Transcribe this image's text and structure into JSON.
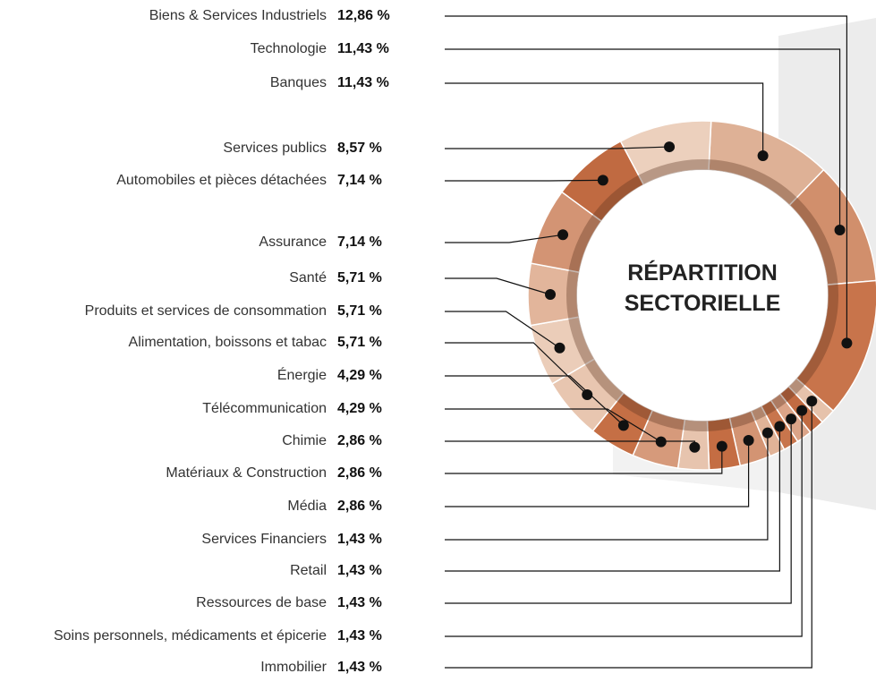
{
  "chart_data": {
    "type": "pie",
    "title": "RÉPARTITION SECTORIELLE",
    "categories": [
      "Biens & Services Industriels",
      "Technologie",
      "Banques",
      "Services publics",
      "Automobiles et pièces détachées",
      "Assurance",
      "Santé",
      "Produits et services de consommation",
      "Alimentation, boissons et tabac",
      "Énergie",
      "Télécommunication",
      "Chimie",
      "Matériaux & Construction",
      "Média",
      "Services Financiers",
      "Retail",
      "Ressources de base",
      "Soins personnels, médicaments et épicerie",
      "Immobilier"
    ],
    "values": [
      12.86,
      11.43,
      11.43,
      8.57,
      7.14,
      7.14,
      5.71,
      5.71,
      5.71,
      4.29,
      4.29,
      2.86,
      2.86,
      2.86,
      1.43,
      1.43,
      1.43,
      1.43,
      1.43
    ],
    "value_labels": [
      "12,86 %",
      "11,43 %",
      "11,43 %",
      "8,57 %",
      "7,14 %",
      "7,14 %",
      "5,71 %",
      "5,71 %",
      "5,71 %",
      "4,29 %",
      "4,29 %",
      "2,86 %",
      "2,86 %",
      "2,86 %",
      "1,43 %",
      "1,43 %",
      "1,43 %",
      "1,43 %",
      "1,43 %"
    ],
    "colors": [
      "#c8744b",
      "#d18f6c",
      "#deb196",
      "#ecd0bd",
      "#c06a41",
      "#d39474",
      "#e2b59b",
      "#ebcdb9",
      "#e8c6b0",
      "#c56f45",
      "#d69a7b",
      "#e7c4ae",
      "#c46d43",
      "#d39473",
      "#e1b397",
      "#c8754c",
      "#dba488",
      "#c16b42",
      "#e6c2ab"
    ]
  }
}
